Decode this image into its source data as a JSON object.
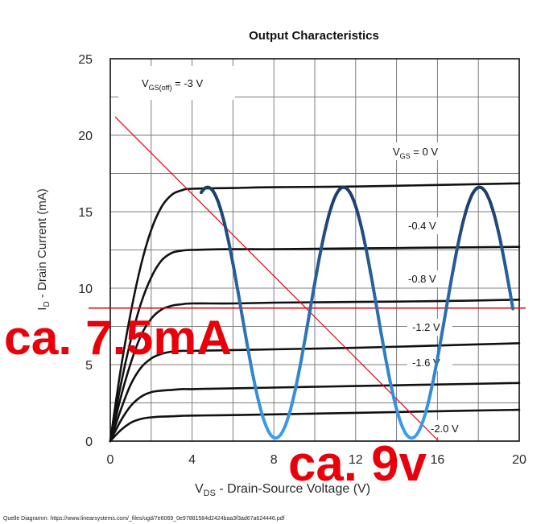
{
  "chart_data": {
    "type": "line",
    "title": "Output Characteristics",
    "xlabel": {
      "main": "V",
      "sub": "DS",
      "rest": " - Drain-Source Voltage (V)"
    },
    "ylabel": {
      "main": "I",
      "sub": "D",
      "rest": " - Drain Current (mA)"
    },
    "xlim": [
      0,
      20
    ],
    "ylim": [
      0,
      25
    ],
    "xticks": [
      0,
      4,
      8,
      12,
      16,
      20
    ],
    "yticks": [
      0,
      5,
      10,
      15,
      20,
      25
    ],
    "grid": true,
    "x": [
      0,
      0.5,
      1,
      1.5,
      2,
      2.5,
      3,
      3.5,
      4,
      6,
      8,
      12,
      16,
      20
    ],
    "series": [
      {
        "label": {
          "main": "V",
          "sub": "GS",
          "rest": " = 0 V"
        },
        "color": "#111111",
        "values": [
          0,
          4.6,
          8.4,
          11.5,
          13.8,
          15.3,
          16.1,
          16.4,
          16.5,
          16.55,
          16.6,
          16.65,
          16.75,
          16.85
        ]
      },
      {
        "label": {
          "main": "-0.4 V"
        },
        "color": "#111111",
        "values": [
          0,
          3.6,
          6.6,
          9.0,
          10.7,
          11.8,
          12.3,
          12.45,
          12.5,
          12.55,
          12.55,
          12.6,
          12.65,
          12.7
        ]
      },
      {
        "label": {
          "main": "-0.8 V"
        },
        "color": "#111111",
        "values": [
          0,
          2.8,
          5.1,
          6.9,
          8.0,
          8.6,
          8.85,
          8.95,
          9.0,
          9.0,
          9.05,
          9.1,
          9.15,
          9.25
        ]
      },
      {
        "label": {
          "main": "-1.2 V"
        },
        "color": "#111111",
        "values": [
          0,
          2.0,
          3.7,
          4.8,
          5.4,
          5.7,
          5.85,
          5.9,
          5.9,
          5.95,
          6.0,
          6.1,
          6.25,
          6.4
        ]
      },
      {
        "label": {
          "main": "-1.6 V"
        },
        "color": "#111111",
        "values": [
          0,
          1.3,
          2.3,
          2.9,
          3.2,
          3.3,
          3.35,
          3.4,
          3.4,
          3.45,
          3.5,
          3.6,
          3.7,
          3.8
        ]
      },
      {
        "label": {
          "main": "-2.0 V"
        },
        "color": "#111111",
        "values": [
          0,
          0.7,
          1.2,
          1.45,
          1.55,
          1.6,
          1.62,
          1.65,
          1.67,
          1.7,
          1.75,
          1.85,
          1.95,
          2.05
        ]
      }
    ],
    "annotations": {
      "vgs_off": {
        "main": "V",
        "sub": "GS(off)",
        "rest": " = -3 V"
      },
      "load_line": {
        "color": "#e8000b",
        "x": [
          0.24,
          16.06
        ],
        "y": [
          21.2,
          0
        ]
      },
      "current_marker": {
        "color": "#e8000b",
        "y": 8.7,
        "text": "ca. 7.5mA"
      },
      "voltage_marker": {
        "color": "#e8000b",
        "text": "ca. 9v"
      },
      "signal": {
        "colors": [
          "#1c3b68",
          "#3aa0f0"
        ],
        "x_start": 4.45,
        "x_end": 19.7,
        "center": 8.4,
        "amplitude": 8.2,
        "period": 6.65,
        "first_peak": 4.76
      }
    }
  },
  "source": "Quelle Diagramm: https://www.linearsystems.com/_files/ugd/7e6069_0e97881584d2424baa3f3ad67a624446.pdf"
}
